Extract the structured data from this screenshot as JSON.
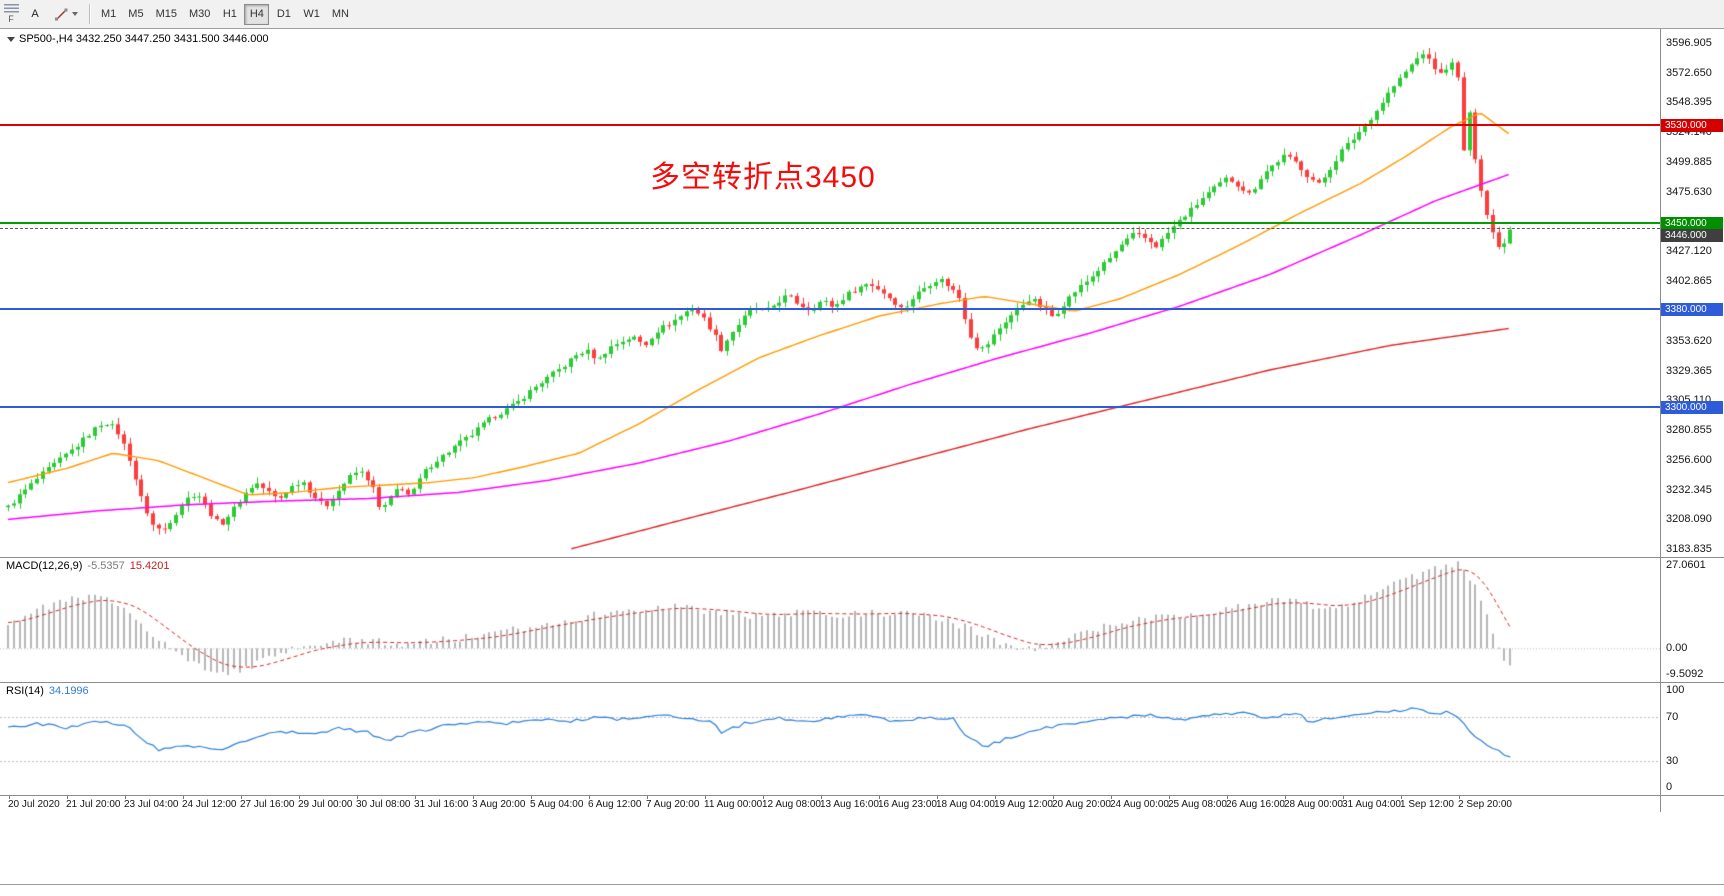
{
  "toolbar": {
    "f_label": "F",
    "text_tool_label": "A",
    "timeframes": [
      {
        "label": "M1",
        "active": false
      },
      {
        "label": "M5",
        "active": false
      },
      {
        "label": "M15",
        "active": false
      },
      {
        "label": "M30",
        "active": false
      },
      {
        "label": "H1",
        "active": false
      },
      {
        "label": "H4",
        "active": true
      },
      {
        "label": "D1",
        "active": false
      },
      {
        "label": "W1",
        "active": false
      },
      {
        "label": "MN",
        "active": false
      }
    ]
  },
  "chart_data": {
    "type": "candlestick",
    "symbol": "SP500-",
    "timeframe": "H4",
    "title": "SP500-,H4 3432.250 3447.250 3431.500 3446.000",
    "current_bar": {
      "open": 3432.25,
      "high": 3447.25,
      "low": 3431.5,
      "close": 3446.0
    },
    "annotation": {
      "text": "多空转折点3450",
      "color": "#f40b0b"
    },
    "candle_colors": {
      "up": "#2dc937",
      "down": "#fd3c3c"
    },
    "y_axis": {
      "min": 3183.835,
      "max": 3596.905,
      "labels": [
        "3596.905",
        "3572.650",
        "3548.395",
        "3524.140",
        "3499.885",
        "3475.630",
        "3427.120",
        "3402.865",
        "3353.620",
        "3329.365",
        "3305.110",
        "3280.855",
        "3256.600",
        "3232.345",
        "3208.090",
        "3183.835"
      ]
    },
    "x_axis": {
      "labels": [
        "20 Jul 2020",
        "21 Jul 20:00",
        "23 Jul 04:00",
        "24 Jul 12:00",
        "27 Jul 16:00",
        "29 Jul 00:00",
        "30 Jul 08:00",
        "31 Jul 16:00",
        "3 Aug 20:00",
        "5 Aug 04:00",
        "6 Aug 12:00",
        "7 Aug 20:00",
        "11 Aug 00:00",
        "12 Aug 08:00",
        "13 Aug 16:00",
        "16 Aug 23:00",
        "18 Aug 04:00",
        "19 Aug 12:00",
        "20 Aug 20:00",
        "24 Aug 00:00",
        "25 Aug 08:00",
        "26 Aug 16:00",
        "28 Aug 00:00",
        "31 Aug 04:00",
        "1 Sep 12:00",
        "2 Sep 20:00"
      ]
    },
    "h_lines": [
      {
        "price": 3530.0,
        "label": "3530.000",
        "color": "#e00000",
        "thickness": 2,
        "tag_bg": "#d40000"
      },
      {
        "price": 3450.0,
        "label": "3450.000",
        "color": "#00a000",
        "thickness": 2,
        "tag_bg": "#008f00"
      },
      {
        "price": 3446.0,
        "label": "3446.000",
        "color": "#5a5a5a",
        "thickness": 1,
        "dashed": true,
        "tag_bg": "#3f3f3f",
        "tag_below": true
      },
      {
        "price": 3380.0,
        "label": "3380.000",
        "color": "#2e5bd7",
        "thickness": 2,
        "tag_bg": "#2e5bd7"
      },
      {
        "price": 3300.0,
        "label": "3300.000",
        "color": "#2e5bd7",
        "thickness": 2,
        "tag_bg": "#2e5bd7"
      }
    ],
    "price_path": [
      [
        0.0,
        3218
      ],
      [
        0.01,
        3230
      ],
      [
        0.022,
        3244
      ],
      [
        0.034,
        3256
      ],
      [
        0.046,
        3268
      ],
      [
        0.056,
        3280
      ],
      [
        0.064,
        3288
      ],
      [
        0.072,
        3282
      ],
      [
        0.08,
        3262
      ],
      [
        0.088,
        3228
      ],
      [
        0.096,
        3204
      ],
      [
        0.103,
        3198
      ],
      [
        0.11,
        3210
      ],
      [
        0.118,
        3224
      ],
      [
        0.126,
        3230
      ],
      [
        0.133,
        3216
      ],
      [
        0.141,
        3203
      ],
      [
        0.149,
        3214
      ],
      [
        0.157,
        3228
      ],
      [
        0.165,
        3238
      ],
      [
        0.172,
        3232
      ],
      [
        0.18,
        3224
      ],
      [
        0.188,
        3234
      ],
      [
        0.196,
        3240
      ],
      [
        0.203,
        3228
      ],
      [
        0.211,
        3218
      ],
      [
        0.219,
        3230
      ],
      [
        0.227,
        3242
      ],
      [
        0.234,
        3248
      ],
      [
        0.242,
        3238
      ],
      [
        0.248,
        3214
      ],
      [
        0.254,
        3224
      ],
      [
        0.261,
        3236
      ],
      [
        0.268,
        3226
      ],
      [
        0.276,
        3245
      ],
      [
        0.284,
        3255
      ],
      [
        0.292,
        3262
      ],
      [
        0.3,
        3270
      ],
      [
        0.308,
        3276
      ],
      [
        0.315,
        3284
      ],
      [
        0.323,
        3292
      ],
      [
        0.331,
        3297
      ],
      [
        0.339,
        3303
      ],
      [
        0.346,
        3311
      ],
      [
        0.354,
        3319
      ],
      [
        0.362,
        3326
      ],
      [
        0.37,
        3333
      ],
      [
        0.377,
        3341
      ],
      [
        0.385,
        3346
      ],
      [
        0.393,
        3338
      ],
      [
        0.4,
        3348
      ],
      [
        0.408,
        3353
      ],
      [
        0.416,
        3357
      ],
      [
        0.424,
        3350
      ],
      [
        0.431,
        3361
      ],
      [
        0.439,
        3367
      ],
      [
        0.447,
        3373
      ],
      [
        0.455,
        3381
      ],
      [
        0.462,
        3374
      ],
      [
        0.47,
        3360
      ],
      [
        0.475,
        3347
      ],
      [
        0.481,
        3359
      ],
      [
        0.489,
        3371
      ],
      [
        0.496,
        3381
      ],
      [
        0.504,
        3377
      ],
      [
        0.512,
        3385
      ],
      [
        0.519,
        3391
      ],
      [
        0.527,
        3383
      ],
      [
        0.535,
        3379
      ],
      [
        0.542,
        3387
      ],
      [
        0.55,
        3381
      ],
      [
        0.558,
        3391
      ],
      [
        0.566,
        3397
      ],
      [
        0.573,
        3401
      ],
      [
        0.581,
        3395
      ],
      [
        0.589,
        3387
      ],
      [
        0.596,
        3379
      ],
      [
        0.604,
        3391
      ],
      [
        0.612,
        3399
      ],
      [
        0.62,
        3405
      ],
      [
        0.627,
        3398
      ],
      [
        0.633,
        3390
      ],
      [
        0.638,
        3369
      ],
      [
        0.643,
        3350
      ],
      [
        0.65,
        3347
      ],
      [
        0.658,
        3361
      ],
      [
        0.665,
        3371
      ],
      [
        0.673,
        3381
      ],
      [
        0.681,
        3389
      ],
      [
        0.688,
        3381
      ],
      [
        0.696,
        3373
      ],
      [
        0.704,
        3386
      ],
      [
        0.712,
        3396
      ],
      [
        0.719,
        3403
      ],
      [
        0.727,
        3413
      ],
      [
        0.735,
        3423
      ],
      [
        0.742,
        3433
      ],
      [
        0.75,
        3441
      ],
      [
        0.758,
        3437
      ],
      [
        0.765,
        3431
      ],
      [
        0.773,
        3443
      ],
      [
        0.781,
        3453
      ],
      [
        0.788,
        3461
      ],
      [
        0.796,
        3471
      ],
      [
        0.804,
        3479
      ],
      [
        0.812,
        3487
      ],
      [
        0.819,
        3481
      ],
      [
        0.827,
        3473
      ],
      [
        0.835,
        3489
      ],
      [
        0.842,
        3497
      ],
      [
        0.85,
        3505
      ],
      [
        0.858,
        3499
      ],
      [
        0.865,
        3489
      ],
      [
        0.873,
        3481
      ],
      [
        0.881,
        3496
      ],
      [
        0.888,
        3509
      ],
      [
        0.896,
        3519
      ],
      [
        0.904,
        3531
      ],
      [
        0.912,
        3543
      ],
      [
        0.919,
        3556
      ],
      [
        0.927,
        3568
      ],
      [
        0.935,
        3580
      ],
      [
        0.942,
        3589
      ],
      [
        0.948,
        3579
      ],
      [
        0.954,
        3571
      ],
      [
        0.96,
        3581
      ],
      [
        0.965,
        3576
      ],
      [
        0.968,
        3480
      ],
      [
        0.971,
        3560
      ],
      [
        0.975,
        3516
      ],
      [
        0.979,
        3489
      ],
      [
        0.983,
        3463
      ],
      [
        0.987,
        3447
      ],
      [
        0.991,
        3433
      ],
      [
        0.995,
        3430
      ],
      [
        1.0,
        3446
      ]
    ],
    "moving_averages": [
      {
        "name": "ma-fast",
        "color": "#ff9900",
        "width": 1.4,
        "anchors": [
          [
            0.0,
            3238
          ],
          [
            0.04,
            3250
          ],
          [
            0.07,
            3262
          ],
          [
            0.1,
            3256
          ],
          [
            0.13,
            3242
          ],
          [
            0.16,
            3228
          ],
          [
            0.19,
            3230
          ],
          [
            0.22,
            3234
          ],
          [
            0.25,
            3236
          ],
          [
            0.28,
            3238
          ],
          [
            0.31,
            3242
          ],
          [
            0.34,
            3250
          ],
          [
            0.38,
            3262
          ],
          [
            0.42,
            3286
          ],
          [
            0.46,
            3314
          ],
          [
            0.5,
            3340
          ],
          [
            0.54,
            3358
          ],
          [
            0.58,
            3374
          ],
          [
            0.62,
            3384
          ],
          [
            0.65,
            3390
          ],
          [
            0.68,
            3384
          ],
          [
            0.71,
            3378
          ],
          [
            0.74,
            3388
          ],
          [
            0.78,
            3408
          ],
          [
            0.82,
            3432
          ],
          [
            0.86,
            3458
          ],
          [
            0.9,
            3482
          ],
          [
            0.93,
            3504
          ],
          [
            0.96,
            3528
          ],
          [
            0.98,
            3540
          ],
          [
            1.0,
            3522
          ]
        ]
      },
      {
        "name": "ma-mid",
        "color": "#ff00ff",
        "width": 1.5,
        "anchors": [
          [
            0.0,
            3208
          ],
          [
            0.06,
            3215
          ],
          [
            0.12,
            3220
          ],
          [
            0.18,
            3223
          ],
          [
            0.24,
            3225
          ],
          [
            0.3,
            3230
          ],
          [
            0.36,
            3240
          ],
          [
            0.42,
            3254
          ],
          [
            0.48,
            3272
          ],
          [
            0.54,
            3294
          ],
          [
            0.6,
            3318
          ],
          [
            0.66,
            3340
          ],
          [
            0.72,
            3360
          ],
          [
            0.78,
            3382
          ],
          [
            0.84,
            3408
          ],
          [
            0.9,
            3440
          ],
          [
            0.95,
            3468
          ],
          [
            1.0,
            3490
          ]
        ]
      },
      {
        "name": "ma-slow",
        "color": "#dd2222",
        "width": 1.4,
        "anchors": [
          [
            0.375,
            3184
          ],
          [
            0.45,
            3208
          ],
          [
            0.52,
            3230
          ],
          [
            0.6,
            3256
          ],
          [
            0.68,
            3282
          ],
          [
            0.76,
            3306
          ],
          [
            0.84,
            3330
          ],
          [
            0.92,
            3350
          ],
          [
            1.0,
            3364
          ]
        ]
      }
    ],
    "macd": {
      "label": "MACD(12,26,9)",
      "value_main": "-5.5357",
      "value_signal": "15.4201",
      "histogram_color": "#b6b6b6",
      "signal_color": "#d22b2b",
      "scale": {
        "max": 27.0601,
        "min": -9.5092
      },
      "axis_labels": [
        {
          "text": "27.0601",
          "value": 27.0601
        },
        {
          "text": "0.00",
          "value": 0
        },
        {
          "text": "-9.5092",
          "value": -9.5092
        }
      ],
      "anchors": [
        [
          0.0,
          8
        ],
        [
          0.02,
          12
        ],
        [
          0.04,
          15
        ],
        [
          0.06,
          16
        ],
        [
          0.08,
          12
        ],
        [
          0.1,
          3
        ],
        [
          0.12,
          -4
        ],
        [
          0.14,
          -8
        ],
        [
          0.16,
          -6
        ],
        [
          0.18,
          -2
        ],
        [
          0.2,
          1
        ],
        [
          0.23,
          2.5
        ],
        [
          0.26,
          1.5
        ],
        [
          0.29,
          2.5
        ],
        [
          0.32,
          4
        ],
        [
          0.35,
          7
        ],
        [
          0.38,
          9.5
        ],
        [
          0.41,
          11.5
        ],
        [
          0.44,
          13
        ],
        [
          0.47,
          11.5
        ],
        [
          0.5,
          10
        ],
        [
          0.53,
          11
        ],
        [
          0.56,
          10.5
        ],
        [
          0.59,
          11
        ],
        [
          0.62,
          9.5
        ],
        [
          0.64,
          6
        ],
        [
          0.66,
          2
        ],
        [
          0.68,
          -0.5
        ],
        [
          0.7,
          2
        ],
        [
          0.72,
          5
        ],
        [
          0.74,
          8
        ],
        [
          0.77,
          10
        ],
        [
          0.8,
          11
        ],
        [
          0.82,
          13
        ],
        [
          0.84,
          15
        ],
        [
          0.86,
          14
        ],
        [
          0.88,
          12.5
        ],
        [
          0.9,
          15
        ],
        [
          0.92,
          19
        ],
        [
          0.94,
          23
        ],
        [
          0.955,
          25.5
        ],
        [
          0.965,
          26.5
        ],
        [
          0.975,
          21
        ],
        [
          0.985,
          9
        ],
        [
          0.995,
          -3
        ],
        [
          1.0,
          -5.5
        ]
      ]
    },
    "rsi": {
      "label": "RSI(14)",
      "value": "34.1996",
      "line_color": "#2f7ed8",
      "levels": [
        {
          "text": "100",
          "value": 100,
          "line": false
        },
        {
          "text": "70",
          "value": 70,
          "line": true
        },
        {
          "text": "30",
          "value": 30,
          "line": true
        },
        {
          "text": "0",
          "value": 0,
          "line": false
        }
      ],
      "anchors": [
        [
          0.0,
          60
        ],
        [
          0.02,
          64
        ],
        [
          0.04,
          60
        ],
        [
          0.06,
          66
        ],
        [
          0.08,
          62
        ],
        [
          0.09,
          50
        ],
        [
          0.1,
          40
        ],
        [
          0.12,
          44
        ],
        [
          0.14,
          40
        ],
        [
          0.16,
          50
        ],
        [
          0.18,
          58
        ],
        [
          0.2,
          54
        ],
        [
          0.22,
          60
        ],
        [
          0.24,
          56
        ],
        [
          0.25,
          48
        ],
        [
          0.27,
          56
        ],
        [
          0.29,
          62
        ],
        [
          0.31,
          66
        ],
        [
          0.33,
          64
        ],
        [
          0.35,
          68
        ],
        [
          0.37,
          66
        ],
        [
          0.39,
          70
        ],
        [
          0.41,
          68
        ],
        [
          0.43,
          72
        ],
        [
          0.45,
          70
        ],
        [
          0.47,
          66
        ],
        [
          0.475,
          56
        ],
        [
          0.49,
          64
        ],
        [
          0.51,
          70
        ],
        [
          0.53,
          66
        ],
        [
          0.55,
          70
        ],
        [
          0.57,
          72
        ],
        [
          0.59,
          66
        ],
        [
          0.61,
          70
        ],
        [
          0.63,
          68
        ],
        [
          0.635,
          56
        ],
        [
          0.65,
          42
        ],
        [
          0.66,
          48
        ],
        [
          0.68,
          58
        ],
        [
          0.7,
          62
        ],
        [
          0.72,
          66
        ],
        [
          0.74,
          70
        ],
        [
          0.76,
          72
        ],
        [
          0.78,
          68
        ],
        [
          0.8,
          72
        ],
        [
          0.82,
          74
        ],
        [
          0.84,
          70
        ],
        [
          0.86,
          74
        ],
        [
          0.865,
          66
        ],
        [
          0.88,
          70
        ],
        [
          0.9,
          74
        ],
        [
          0.92,
          76
        ],
        [
          0.94,
          78
        ],
        [
          0.95,
          72
        ],
        [
          0.96,
          76
        ],
        [
          0.97,
          62
        ],
        [
          0.98,
          48
        ],
        [
          0.99,
          40
        ],
        [
          1.0,
          34.2
        ]
      ]
    }
  }
}
